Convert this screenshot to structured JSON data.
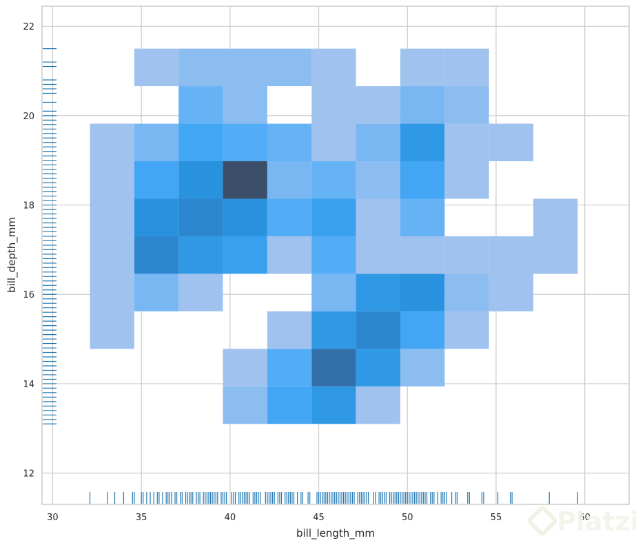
{
  "chart_data": {
    "type": "heatmap",
    "xlabel": "bill_length_mm",
    "ylabel": "bill_depth_mm",
    "xlim": [
      29.4,
      62.5
    ],
    "ylim": [
      11.3,
      22.45
    ],
    "x_ticks": [
      "30",
      "35",
      "40",
      "45",
      "50",
      "55",
      "60"
    ],
    "y_ticks": [
      "12",
      "14",
      "16",
      "18",
      "20",
      "22"
    ],
    "grid": true,
    "bin_x_edges": [
      32.1,
      34.6,
      37.1,
      39.6,
      42.1,
      44.6,
      47.1,
      49.6,
      52.1,
      54.6,
      57.1,
      59.6
    ],
    "bin_y_edges": [
      13.1,
      13.94,
      14.78,
      15.62,
      16.46,
      17.3,
      18.14,
      18.98,
      19.82,
      20.66,
      21.5
    ],
    "cells": [
      {
        "col": 0,
        "row": 2,
        "value": 1
      },
      {
        "col": 0,
        "row": 3,
        "value": 1
      },
      {
        "col": 0,
        "row": 4,
        "value": 1
      },
      {
        "col": 0,
        "row": 5,
        "value": 1
      },
      {
        "col": 0,
        "row": 6,
        "value": 1
      },
      {
        "col": 0,
        "row": 7,
        "value": 1
      },
      {
        "col": 1,
        "row": 3,
        "value": 3
      },
      {
        "col": 1,
        "row": 4,
        "value": 10
      },
      {
        "col": 1,
        "row": 5,
        "value": 9
      },
      {
        "col": 1,
        "row": 6,
        "value": 6
      },
      {
        "col": 1,
        "row": 7,
        "value": 3
      },
      {
        "col": 1,
        "row": 9,
        "value": 1
      },
      {
        "col": 2,
        "row": 3,
        "value": 1
      },
      {
        "col": 2,
        "row": 4,
        "value": 8
      },
      {
        "col": 2,
        "row": 5,
        "value": 10
      },
      {
        "col": 2,
        "row": 6,
        "value": 9
      },
      {
        "col": 2,
        "row": 7,
        "value": 6
      },
      {
        "col": 2,
        "row": 8,
        "value": 4
      },
      {
        "col": 2,
        "row": 9,
        "value": 2
      },
      {
        "col": 3,
        "row": 0,
        "value": 2
      },
      {
        "col": 3,
        "row": 1,
        "value": 1
      },
      {
        "col": 3,
        "row": 4,
        "value": 7
      },
      {
        "col": 3,
        "row": 5,
        "value": 9
      },
      {
        "col": 3,
        "row": 6,
        "value": 14
      },
      {
        "col": 3,
        "row": 7,
        "value": 5
      },
      {
        "col": 3,
        "row": 8,
        "value": 2
      },
      {
        "col": 3,
        "row": 9,
        "value": 2
      },
      {
        "col": 4,
        "row": 0,
        "value": 6
      },
      {
        "col": 4,
        "row": 1,
        "value": 5
      },
      {
        "col": 4,
        "row": 2,
        "value": 1
      },
      {
        "col": 4,
        "row": 4,
        "value": 1
      },
      {
        "col": 4,
        "row": 5,
        "value": 5
      },
      {
        "col": 4,
        "row": 6,
        "value": 3
      },
      {
        "col": 4,
        "row": 7,
        "value": 4
      },
      {
        "col": 4,
        "row": 9,
        "value": 2
      },
      {
        "col": 5,
        "row": 0,
        "value": 8
      },
      {
        "col": 5,
        "row": 1,
        "value": 12
      },
      {
        "col": 5,
        "row": 2,
        "value": 8
      },
      {
        "col": 5,
        "row": 3,
        "value": 3
      },
      {
        "col": 5,
        "row": 4,
        "value": 5
      },
      {
        "col": 5,
        "row": 5,
        "value": 7
      },
      {
        "col": 5,
        "row": 6,
        "value": 4
      },
      {
        "col": 5,
        "row": 7,
        "value": 1
      },
      {
        "col": 5,
        "row": 8,
        "value": 1
      },
      {
        "col": 5,
        "row": 9,
        "value": 1
      },
      {
        "col": 6,
        "row": 0,
        "value": 1
      },
      {
        "col": 6,
        "row": 1,
        "value": 8
      },
      {
        "col": 6,
        "row": 2,
        "value": 10
      },
      {
        "col": 6,
        "row": 3,
        "value": 8
      },
      {
        "col": 6,
        "row": 4,
        "value": 1
      },
      {
        "col": 6,
        "row": 5,
        "value": 1
      },
      {
        "col": 6,
        "row": 6,
        "value": 2
      },
      {
        "col": 6,
        "row": 7,
        "value": 3
      },
      {
        "col": 6,
        "row": 8,
        "value": 1
      },
      {
        "col": 7,
        "row": 1,
        "value": 2
      },
      {
        "col": 7,
        "row": 2,
        "value": 6
      },
      {
        "col": 7,
        "row": 3,
        "value": 9
      },
      {
        "col": 7,
        "row": 4,
        "value": 1
      },
      {
        "col": 7,
        "row": 5,
        "value": 4
      },
      {
        "col": 7,
        "row": 6,
        "value": 6
      },
      {
        "col": 7,
        "row": 7,
        "value": 8
      },
      {
        "col": 7,
        "row": 8,
        "value": 3
      },
      {
        "col": 7,
        "row": 9,
        "value": 1
      },
      {
        "col": 8,
        "row": 2,
        "value": 1
      },
      {
        "col": 8,
        "row": 3,
        "value": 2
      },
      {
        "col": 8,
        "row": 4,
        "value": 1
      },
      {
        "col": 8,
        "row": 6,
        "value": 1
      },
      {
        "col": 8,
        "row": 7,
        "value": 1
      },
      {
        "col": 8,
        "row": 8,
        "value": 2
      },
      {
        "col": 8,
        "row": 9,
        "value": 1
      },
      {
        "col": 9,
        "row": 3,
        "value": 1
      },
      {
        "col": 9,
        "row": 4,
        "value": 1
      },
      {
        "col": 9,
        "row": 7,
        "value": 1
      },
      {
        "col": 10,
        "row": 4,
        "value": 1
      },
      {
        "col": 10,
        "row": 5,
        "value": 1
      }
    ],
    "color_max": 14,
    "colors": {
      "low": "#a0c2ef",
      "high": "#3b4f6b"
    },
    "rug_x": [
      32.1,
      33.1,
      33.5,
      34.0,
      34.5,
      34.6,
      35.0,
      35.1,
      35.3,
      35.5,
      35.7,
      35.9,
      36.0,
      36.2,
      36.4,
      36.5,
      36.6,
      36.7,
      36.9,
      37.0,
      37.2,
      37.3,
      37.5,
      37.6,
      37.7,
      37.8,
      37.9,
      38.1,
      38.2,
      38.3,
      38.5,
      38.6,
      38.7,
      38.8,
      38.9,
      39.0,
      39.1,
      39.2,
      39.3,
      39.5,
      39.6,
      39.7,
      39.8,
      40.1,
      40.2,
      40.3,
      40.5,
      40.6,
      40.7,
      40.8,
      40.9,
      41.0,
      41.1,
      41.3,
      41.4,
      41.5,
      41.6,
      41.7,
      42.0,
      42.1,
      42.2,
      42.3,
      42.4,
      42.5,
      42.7,
      42.8,
      42.9,
      43.1,
      43.2,
      43.3,
      43.4,
      43.5,
      43.6,
      43.8,
      44.0,
      44.1,
      44.4,
      44.5,
      44.9,
      45.0,
      45.1,
      45.2,
      45.3,
      45.4,
      45.5,
      45.6,
      45.7,
      45.8,
      45.9,
      46.0,
      46.1,
      46.2,
      46.3,
      46.4,
      46.5,
      46.6,
      46.7,
      46.8,
      46.9,
      47.0,
      47.2,
      47.3,
      47.4,
      47.5,
      47.6,
      47.7,
      47.8,
      48.1,
      48.2,
      48.4,
      48.5,
      48.6,
      48.7,
      48.8,
      49.0,
      49.1,
      49.2,
      49.3,
      49.4,
      49.5,
      49.6,
      49.7,
      49.8,
      49.9,
      50.0,
      50.1,
      50.2,
      50.3,
      50.4,
      50.5,
      50.6,
      50.7,
      50.8,
      50.9,
      51.0,
      51.1,
      51.3,
      51.4,
      51.5,
      51.7,
      51.9,
      52.0,
      52.1,
      52.2,
      52.5,
      52.7,
      52.8,
      53.4,
      53.5,
      54.2,
      54.3,
      55.1,
      55.8,
      55.9,
      58.0,
      59.6
    ],
    "rug_y": [
      13.1,
      13.2,
      13.3,
      13.4,
      13.5,
      13.6,
      13.7,
      13.8,
      13.9,
      14.0,
      14.1,
      14.2,
      14.3,
      14.4,
      14.5,
      14.6,
      14.7,
      14.8,
      14.9,
      15.0,
      15.1,
      15.2,
      15.3,
      15.4,
      15.5,
      15.6,
      15.7,
      15.8,
      15.9,
      16.0,
      16.1,
      16.2,
      16.3,
      16.4,
      16.5,
      16.6,
      16.7,
      16.8,
      16.9,
      17.0,
      17.1,
      17.2,
      17.3,
      17.4,
      17.5,
      17.6,
      17.7,
      17.8,
      17.9,
      18.0,
      18.1,
      18.2,
      18.3,
      18.4,
      18.5,
      18.6,
      18.7,
      18.8,
      18.9,
      19.0,
      19.1,
      19.2,
      19.3,
      19.4,
      19.5,
      19.6,
      19.7,
      19.8,
      19.9,
      20.0,
      20.1,
      20.3,
      20.5,
      20.6,
      20.7,
      20.8,
      21.1,
      21.2,
      21.5
    ],
    "rug_color": "#1f77b4"
  },
  "watermark": {
    "text": "Platzi",
    "icon": "platzi-logo-icon",
    "color": "#f1f4ea"
  }
}
